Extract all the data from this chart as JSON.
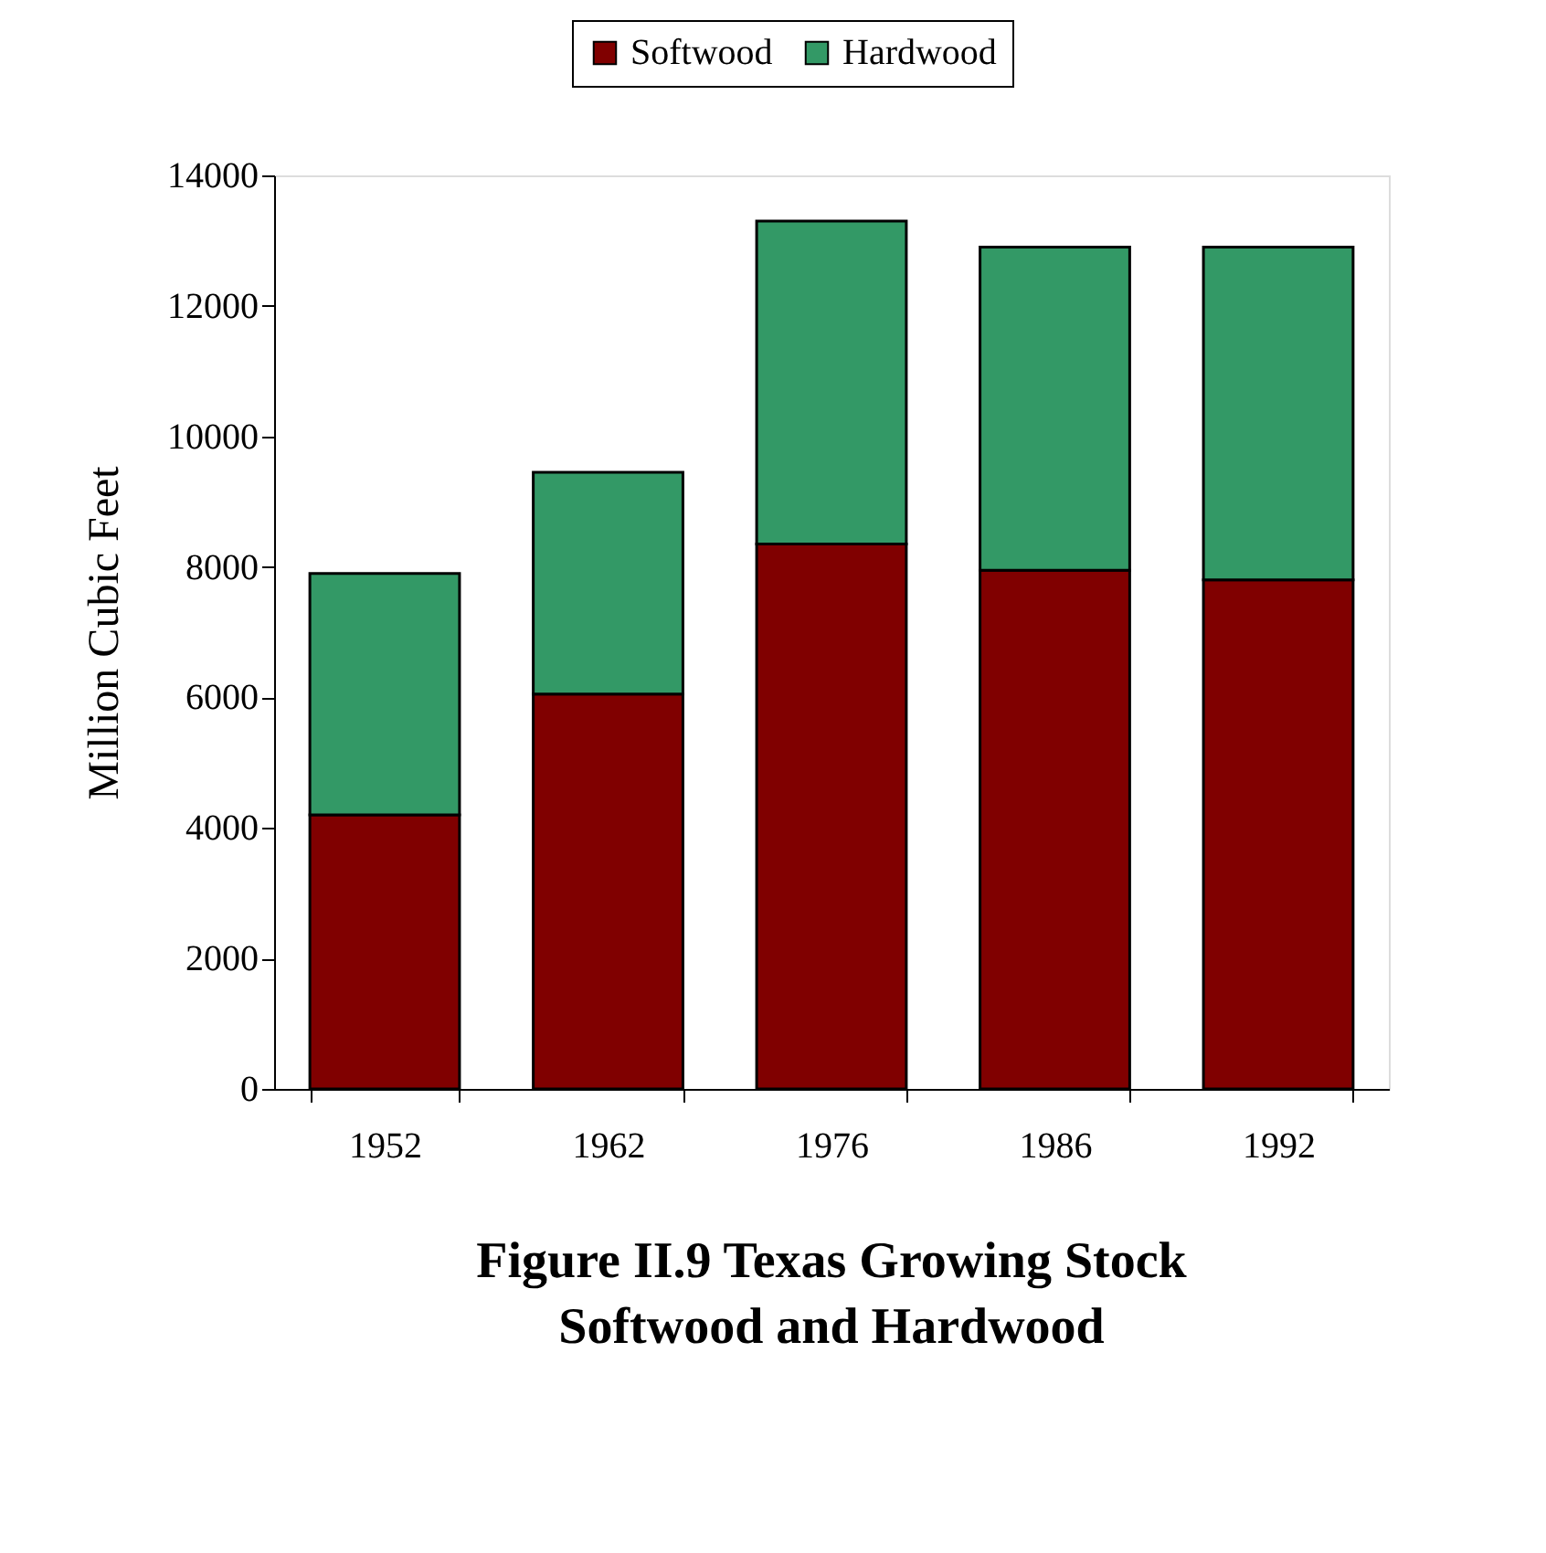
{
  "chart_data": {
    "type": "bar",
    "stacked": true,
    "title": "Figure II.9 Texas Growing Stock\nSoftwood and Hardwood",
    "ylabel": "Million Cubic Feet",
    "categories": [
      "1952",
      "1962",
      "1976",
      "1986",
      "1992"
    ],
    "series": [
      {
        "name": "Softwood",
        "color": "#800000",
        "values": [
          4200,
          6050,
          8350,
          7950,
          7800
        ]
      },
      {
        "name": "Hardwood",
        "color": "#339966",
        "values": [
          3700,
          3400,
          4950,
          4950,
          5100
        ]
      }
    ],
    "ylim": [
      0,
      14000
    ],
    "yticks": [
      0,
      2000,
      4000,
      6000,
      8000,
      10000,
      12000,
      14000
    ],
    "grid": false,
    "legend": "top"
  }
}
